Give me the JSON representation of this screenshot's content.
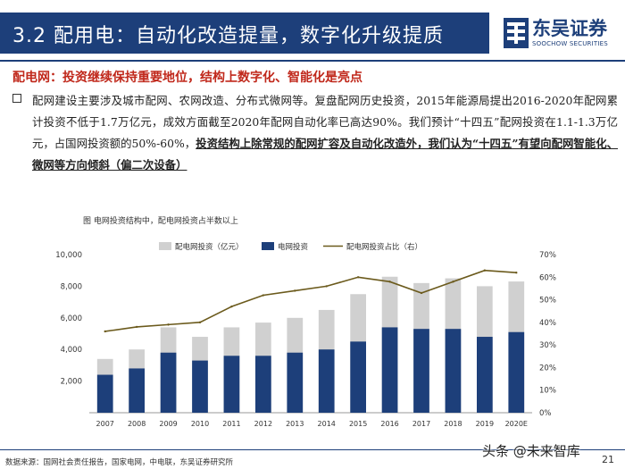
{
  "header": {
    "title": "3.2 配用电：自动化改造提量，数字化升级提质",
    "logo_name": "东吴证券",
    "logo_sub": "SOOCHOW SECURITIES"
  },
  "subtitle": "配电网：投资继续保持重要地位，结构上数字化、智能化是亮点",
  "paragraph": {
    "part1": "配网建设主要涉及城市配网、农网改造、分布式微网等。复盘配网历史投资，2015年能源局提出2016-2020年配网累计投资不低于1.7万亿元，成效方面截至2020年配网自动化率已高达90%。我们预计“十四五”配网投资在1.1-1.3万亿元，占国网投资额的50%-60%，",
    "part2": "投资结构上除常规的配网扩容及自动化改造外，我们认为“十四五”有望向配网智能化、微网等方向倾斜（偏二次设备）"
  },
  "figure": {
    "caption": "图 电网投资结构中，配电网投资占半数以上"
  },
  "chart_data": {
    "type": "bar",
    "categories": [
      "2007",
      "2008",
      "2009",
      "2010",
      "2011",
      "2012",
      "2013",
      "2014",
      "2015",
      "2016",
      "2017",
      "2018",
      "2019",
      "2020E"
    ],
    "series": [
      {
        "name": "配电网投资（亿元）",
        "kind": "bar",
        "axis": "left",
        "color": "#d0d0d0",
        "values": [
          3400,
          4000,
          5400,
          4800,
          5400,
          5700,
          6000,
          6500,
          7500,
          8600,
          8200,
          8500,
          8000,
          8300
        ]
      },
      {
        "name": "电网投资",
        "kind": "bar",
        "axis": "left",
        "color": "#1d3f7a",
        "values": [
          2400,
          2800,
          3800,
          3300,
          3600,
          3600,
          3800,
          4000,
          4500,
          5400,
          5300,
          5300,
          4800,
          5100
        ]
      },
      {
        "name": "配电网投资占比（右）",
        "kind": "line",
        "axis": "right",
        "color": "#6b5a1c",
        "values": [
          36,
          38,
          39,
          40,
          47,
          52,
          54,
          56,
          60,
          58,
          53,
          58,
          63,
          62
        ]
      }
    ],
    "y_left": {
      "min": 0,
      "max": 10000,
      "ticks": [
        2000,
        4000,
        6000,
        8000,
        10000
      ],
      "tick_labels": [
        "2,000",
        "4,000",
        "6,000",
        "8,000",
        "10,000"
      ]
    },
    "y_right": {
      "min": 0,
      "max": 70,
      "ticks": [
        0,
        10,
        20,
        30,
        40,
        50,
        60,
        70
      ],
      "tick_labels": [
        "0%",
        "10%",
        "20%",
        "30%",
        "40%",
        "50%",
        "60%",
        "70%"
      ]
    },
    "legend_position": "top"
  },
  "footer": {
    "source": "数据来源：国网社会责任报告，国家电网，中电联，东吴证券研究所",
    "page": "21",
    "watermark": "头条 @未来智库"
  }
}
